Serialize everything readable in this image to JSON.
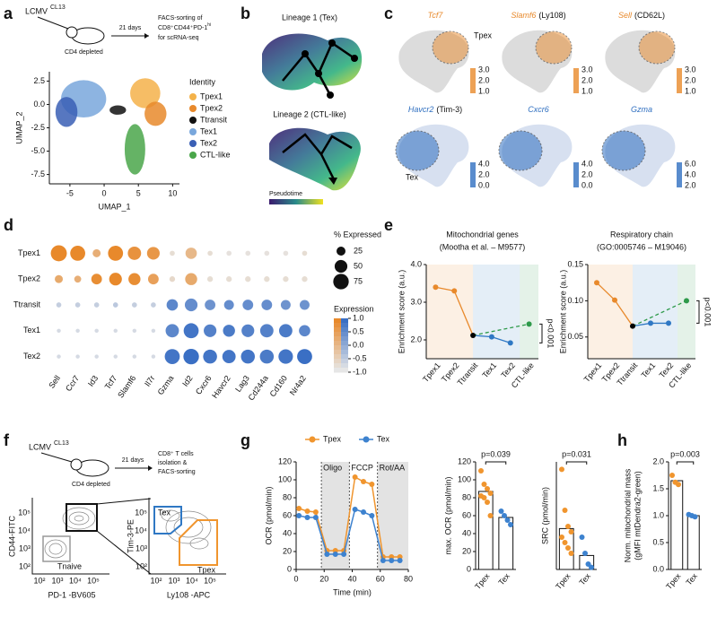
{
  "panels": {
    "labels": [
      "a",
      "b",
      "c",
      "d",
      "e",
      "f",
      "g",
      "h"
    ],
    "a": {
      "virus": "LCMV",
      "strain": "CL13",
      "treatment": "CD4 depleted",
      "duration": "21 days",
      "sorting": [
        "FACS-sorting of",
        "CD8⁺CD44⁺PD-1",
        "hi",
        "for scRNA-seq"
      ]
    },
    "b": {
      "lineage1": "Lineage 1 (Tex)",
      "lineage2": "Lineage 2 (CTL-like)",
      "colorbar": "Pseudotime"
    },
    "c": {
      "genes": [
        {
          "gene": "Tcf7"
        },
        {
          "gene": "Slamf6",
          "protein": "(Ly108)"
        },
        {
          "gene": "Sell",
          "protein": "(CD62L)"
        },
        {
          "gene": "Havcr2",
          "protein": "(Tim-3)"
        },
        {
          "gene": "Cxcr6"
        },
        {
          "gene": "Gzma"
        }
      ],
      "regions": [
        "Tpex",
        "Tex"
      ],
      "colorbar_ticks": [
        [
          "3.0",
          "2.0",
          "1.0"
        ],
        [
          "3.0",
          "2.0",
          "1.0"
        ],
        [
          "3.0",
          "2.0",
          "1.0"
        ],
        [
          "4.0",
          "2.0",
          "0.0"
        ],
        [
          "4.0",
          "2.0",
          "0.0"
        ],
        [
          "6.0",
          "4.0",
          "2.0"
        ]
      ]
    },
    "f": {
      "virus": "LCMV",
      "strain": "CL13",
      "treatment": "CD4 depleted",
      "duration": "21 days",
      "sorting": [
        "CD8⁺ T cells",
        "isolation &",
        "FACS-sorting"
      ],
      "plot1": {
        "ylabel": "CD44-FITC",
        "xlabel": "PD-1 -BV605",
        "gate": "Tnaive"
      },
      "plot2": {
        "ylabel": "Tim-3-PE",
        "xlabel": "Ly108 -APC",
        "gates": [
          "Tex",
          "Tpex"
        ]
      },
      "ticks": [
        "10²",
        "10³",
        "10⁴",
        "10⁵"
      ]
    }
  },
  "chart_data": [
    {
      "type": "umap",
      "xlabel": "UMAP_1",
      "ylabel": "UMAP_2",
      "xlim": [
        -8,
        11
      ],
      "ylim": [
        -8.5,
        3.5
      ],
      "xticks": [
        -5,
        0,
        5,
        10
      ],
      "yticks": [
        2.5,
        {
          "value": 0,
          "label": "0.0"
        },
        -2.5,
        {
          "value": -5,
          "label": "-5.0"
        },
        -7.5
      ],
      "legend_title": "Identity",
      "series": [
        {
          "name": "Tpex1",
          "color": "#f4b24a"
        },
        {
          "name": "Tpex2",
          "color": "#e8892b"
        },
        {
          "name": "Ttransit",
          "color": "#111111"
        },
        {
          "name": "Tex1",
          "color": "#79a7dc"
        },
        {
          "name": "Tex2",
          "color": "#3a5fb5"
        },
        {
          "name": "CTL-like",
          "color": "#4aa64a"
        }
      ]
    },
    {
      "type": "dot",
      "categories": [
        "Sell",
        "Ccr7",
        "Id3",
        "Tcf7",
        "Slamf6",
        "Il7r",
        "Gzma",
        "Id2",
        "Cxcr6",
        "Havcr2",
        "Lag3",
        "Cd244a",
        "Cd160",
        "Nr4a2"
      ],
      "size_legend_title": "% Expressed",
      "size_ticks": [
        25,
        50,
        75
      ],
      "color_legend_title": "Expression",
      "color_ticks": [
        {
          "value": 1,
          "label": "1.0"
        },
        0.5,
        {
          "value": 0,
          "label": "0.0"
        },
        -0.5,
        {
          "value": -1,
          "label": "-1.0"
        }
      ],
      "series": [
        {
          "name": "Tpex1",
          "color": "#e8892b",
          "values": [
            80,
            70,
            20,
            70,
            55,
            50,
            8,
            40,
            8,
            8,
            8,
            8,
            8,
            8
          ],
          "expression": [
            1.0,
            1.0,
            0.2,
            1.0,
            0.8,
            0.7,
            -0.8,
            0.0,
            -0.8,
            -0.9,
            -0.9,
            -0.9,
            -0.9,
            -0.8
          ]
        },
        {
          "name": "Tpex2",
          "color": "#e8892b",
          "values": [
            20,
            15,
            35,
            50,
            45,
            35,
            10,
            45,
            10,
            10,
            10,
            10,
            10,
            10
          ],
          "expression": [
            0.3,
            0.2,
            0.9,
            1.0,
            0.9,
            0.5,
            -0.7,
            0.3,
            -0.8,
            -0.8,
            -0.8,
            -0.8,
            -0.8,
            -0.8
          ]
        },
        {
          "name": "Ttransit",
          "color": "#3a6fc4",
          "values": [
            8,
            8,
            8,
            8,
            8,
            8,
            40,
            50,
            35,
            30,
            35,
            35,
            30,
            30
          ],
          "expression": [
            -0.6,
            -0.6,
            -0.6,
            -0.5,
            -0.6,
            -0.6,
            0.6,
            0.5,
            0.4,
            0.5,
            0.5,
            0.5,
            0.4,
            0.4
          ]
        },
        {
          "name": "Tex1",
          "color": "#3a6fc4",
          "values": [
            5,
            5,
            5,
            5,
            5,
            5,
            55,
            70,
            50,
            45,
            50,
            55,
            55,
            40
          ],
          "expression": [
            -0.8,
            -0.8,
            -0.8,
            -0.8,
            -0.8,
            -0.8,
            0.6,
            0.9,
            0.7,
            0.8,
            0.7,
            0.7,
            0.8,
            0.6
          ]
        },
        {
          "name": "Tex2",
          "color": "#3a6fc4",
          "values": [
            5,
            5,
            5,
            5,
            5,
            5,
            70,
            75,
            60,
            55,
            60,
            60,
            65,
            70
          ],
          "expression": [
            -0.8,
            -0.8,
            -0.8,
            -0.8,
            -0.8,
            -0.8,
            0.9,
            1.0,
            0.9,
            0.9,
            0.9,
            0.8,
            0.9,
            1.0
          ]
        }
      ]
    },
    {
      "type": "line",
      "title": "Mitochondrial genes",
      "subtitle": "(Mootha et al. – M9577)",
      "ylabel": "Enrichment score (a.u.)",
      "categories": [
        "Tpex1",
        "Tpex2",
        "Ttransit",
        "Tex1",
        "Tex2",
        "CTL-like"
      ],
      "category_colors": [
        "#e8892b",
        "#e8892b",
        "#000000",
        "#2f78c4",
        "#2f78c4",
        "#2e9a4a"
      ],
      "values": [
        3.4,
        3.3,
        2.12,
        2.08,
        1.92,
        2.42
      ],
      "ylim": [
        1.5,
        4.0
      ],
      "yticks": [
        {
          "value": 2,
          "label": "2.0"
        },
        {
          "value": 3,
          "label": "3.0"
        },
        {
          "value": 4,
          "label": "4.0"
        }
      ],
      "annotation": "p<0.001"
    },
    {
      "type": "line",
      "title": "Respiratory chain",
      "subtitle": "(GO:0005746 – M19046)",
      "ylabel": "Enrichment score (a.u.)",
      "categories": [
        "Tpex1",
        "Tpex2",
        "Ttransit",
        "Tex1",
        "Tex2",
        "CTL-like"
      ],
      "category_colors": [
        "#e8892b",
        "#e8892b",
        "#000000",
        "#2f78c4",
        "#2f78c4",
        "#2e9a4a"
      ],
      "values": [
        0.125,
        0.101,
        0.065,
        0.069,
        0.069,
        0.1
      ],
      "ylim": [
        0.02,
        0.15
      ],
      "yticks": [
        0.05,
        {
          "value": 0.1,
          "label": "0.10"
        },
        0.15
      ],
      "annotation": "p<0.001"
    },
    {
      "type": "line",
      "xlabel": "Time (min)",
      "ylabel": "OCR (pmol/min)",
      "x": [
        2,
        8,
        14,
        22,
        28,
        34,
        42,
        48,
        54,
        62,
        68,
        74
      ],
      "series": [
        {
          "name": "Tpex",
          "color": "#f0952e",
          "values": [
            68,
            65,
            64,
            21,
            21,
            21,
            103,
            98,
            95,
            14,
            14,
            14
          ]
        },
        {
          "name": "Tex",
          "color": "#3d82cf",
          "values": [
            60,
            58,
            58,
            17,
            17,
            17,
            67,
            64,
            60,
            10,
            10,
            10
          ]
        }
      ],
      "injections": [
        {
          "label": "Oligo",
          "x": 18
        },
        {
          "label": "FCCP",
          "x": 38
        },
        {
          "label": "Rot/AA",
          "x": 58
        }
      ],
      "xlim": [
        0,
        80
      ],
      "ylim": [
        0,
        120
      ],
      "xticks": [
        0,
        20,
        40,
        60,
        80
      ],
      "yticks": [
        0,
        20,
        40,
        60,
        80,
        100,
        120
      ]
    },
    {
      "type": "bar",
      "ylabel": "max. OCR (pmol/min)",
      "categories": [
        "Tpex",
        "Tex"
      ],
      "colors": [
        "#f0952e",
        "#3d82cf"
      ],
      "values": [
        87,
        58
      ],
      "points": [
        [
          110,
          95,
          90,
          85,
          82,
          80,
          75,
          60
        ],
        [
          65,
          60,
          55,
          50
        ]
      ],
      "ylim": [
        0,
        120
      ],
      "yticks": [
        0,
        20,
        40,
        60,
        80,
        100,
        120
      ],
      "annotation": "p=0.039"
    },
    {
      "type": "bar",
      "ylabel": "SRC (pmol/min)",
      "categories": [
        "Tpex",
        "Tex"
      ],
      "colors": [
        "#f0952e",
        "#3d82cf"
      ],
      "values": [
        38,
        13
      ],
      "points": [
        [
          93,
          55,
          40,
          35,
          30,
          25,
          20,
          15
        ],
        [
          30,
          15,
          5,
          2
        ]
      ],
      "ylim": [
        0,
        100
      ],
      "annotation": "p=0.031"
    },
    {
      "type": "bar",
      "ylabel": [
        "Norm. mitochondrial mass",
        "(gMFI mtDendra2-green)"
      ],
      "categories": [
        "Tpex",
        "Tex"
      ],
      "colors": [
        "#f0952e",
        "#3d82cf"
      ],
      "values": [
        1.65,
        1.0
      ],
      "points": [
        [
          1.75,
          1.62,
          1.58
        ],
        [
          1.02,
          1.0,
          0.98
        ]
      ],
      "ylim": [
        0,
        2
      ],
      "yticks": [
        {
          "value": 0,
          "label": "0.0"
        },
        0.5,
        {
          "value": 1,
          "label": "1.0"
        },
        1.5,
        {
          "value": 2,
          "label": "2.0"
        }
      ],
      "annotation": "p=0.003"
    }
  ]
}
